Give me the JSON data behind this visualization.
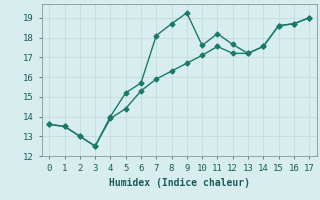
{
  "xlabel": "Humidex (Indice chaleur)",
  "bg_color": "#d8eeee",
  "grid_color": "#c8dede",
  "line_color": "#1a7a6a",
  "xlim": [
    -0.5,
    17.5
  ],
  "ylim": [
    12,
    19.7
  ],
  "xticks": [
    0,
    1,
    2,
    3,
    4,
    5,
    6,
    7,
    8,
    9,
    10,
    11,
    12,
    13,
    14,
    15,
    16,
    17
  ],
  "yticks": [
    12,
    13,
    14,
    15,
    16,
    17,
    18,
    19
  ],
  "line1_x": [
    0,
    1,
    2,
    3,
    4,
    5,
    6,
    7,
    8,
    9,
    10,
    11,
    12,
    13,
    14,
    15,
    16,
    17
  ],
  "line1_y": [
    13.6,
    13.5,
    13.0,
    12.5,
    14.0,
    15.2,
    15.7,
    18.1,
    18.7,
    19.25,
    17.6,
    18.2,
    17.65,
    17.2,
    17.55,
    18.6,
    18.7,
    19.0
  ],
  "line2_x": [
    0,
    1,
    2,
    3,
    4,
    5,
    6,
    7,
    8,
    9,
    10,
    11,
    12,
    13,
    14,
    15,
    16,
    17
  ],
  "line2_y": [
    13.6,
    13.5,
    13.0,
    12.5,
    13.9,
    14.4,
    15.3,
    15.9,
    16.3,
    16.7,
    17.1,
    17.55,
    17.2,
    17.2,
    17.55,
    18.6,
    18.7,
    19.0
  ],
  "marker": "D",
  "markersize": 2.5,
  "linewidth": 1.0,
  "xlabel_fontsize": 7,
  "tick_fontsize": 6.5
}
